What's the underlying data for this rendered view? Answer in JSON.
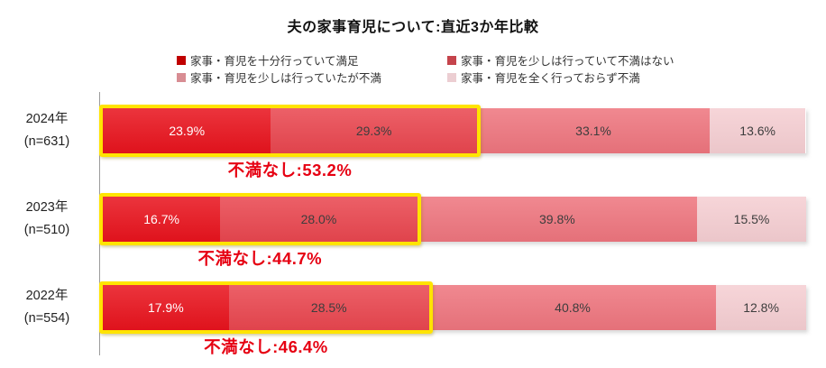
{
  "title": "夫の家事育児について:直近3か年比較",
  "legend": [
    {
      "label": "家事・育児を十分行っていて満足",
      "color": "#c00000"
    },
    {
      "label": "家事・育児を少しは行っていて不満はない",
      "color": "#c5444c"
    },
    {
      "label": "家事・育児を少しは行っていたが不満",
      "color": "#d88d93"
    },
    {
      "label": "家事・育児を全く行っておらず不満",
      "color": "#ecced2"
    }
  ],
  "chart_data": {
    "type": "bar",
    "orientation": "horizontal",
    "stacked": true,
    "title": "夫の家事育児について:直近3か年比較",
    "categories": [
      "2024年",
      "2023年",
      "2022年"
    ],
    "category_sublabels": [
      "(n=631)",
      "(n=510)",
      "(n=554)"
    ],
    "xlim": [
      0,
      100
    ],
    "series": [
      {
        "name": "家事・育児を十分行っていて満足",
        "color": "#e8131d",
        "values": [
          23.9,
          16.7,
          17.9
        ]
      },
      {
        "name": "家事・育児を少しは行っていて不満はない",
        "color": "#e9464f",
        "values": [
          29.3,
          28.0,
          28.5
        ]
      },
      {
        "name": "家事・育児を少しは行っていたが不満",
        "color": "#ee757e",
        "values": [
          33.1,
          39.8,
          40.8
        ]
      },
      {
        "name": "家事・育児を全く行っておらず不満",
        "color": "#f5ced2",
        "values": [
          13.6,
          15.5,
          12.8
        ]
      }
    ],
    "value_labels": [
      [
        "23.9%",
        "29.3%",
        "33.1%",
        "13.6%"
      ],
      [
        "16.7%",
        "28.0%",
        "39.8%",
        "15.5%"
      ],
      [
        "17.9%",
        "28.5%",
        "40.8%",
        "12.8%"
      ]
    ],
    "annotations": [
      {
        "label": "不満なし:53.2%",
        "value": 53.2
      },
      {
        "label": "不満なし:44.7%",
        "value": 44.7
      },
      {
        "label": "不満なし:46.4%",
        "value": 46.4
      }
    ],
    "highlight": {
      "segments": [
        0,
        1
      ],
      "border_color": "#ffe400",
      "note": "不満なし = sum of first two segments"
    }
  }
}
